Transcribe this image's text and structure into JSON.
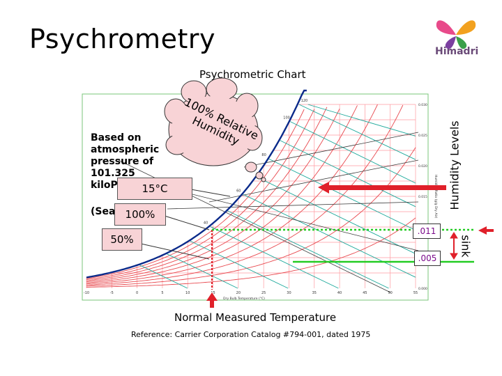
{
  "slide": {
    "title": "Psychrometry",
    "subtitle": "Psychrometric Chart",
    "logo_text": "Himadri"
  },
  "annotations": {
    "based_on": "Based on atmospheric pressure of 101.325 kiloPa",
    "sea": "(Sea",
    "cloud": "100% Relative Humidity",
    "callout_15c": "15°C",
    "callout_100": "100%",
    "callout_50": "50%",
    "humidity_levels": "Humidity Levels",
    "sink": "sink",
    "humidity_011": ".011",
    "humidity_005": ".005",
    "measured_temperature": "Normal Measured Temperature",
    "reference": "Reference: Carrier Corporation Catalog #794-001, dated 1975"
  },
  "colors": {
    "saturation_curve": "#0a2a8a",
    "rh_curves": "#e8484e",
    "enthalpy_lines": "#1aa89a",
    "guide_lines": "#3a3a3a",
    "dotted_011": "#22cc22",
    "solid_005": "#22cc22",
    "arrows": "#e0202a",
    "callout_fill": "#f8d3d6",
    "cloud_fill": "#f8d3d6",
    "humidity_text": "#7a0a8a"
  },
  "chart_data": {
    "type": "psychrometric",
    "x_axis_label": "Dry Bulb Temperature (°C)",
    "x_ticks": [
      "-10",
      "-5",
      "0",
      "5",
      "10",
      "15",
      "20",
      "25",
      "30",
      "35",
      "40",
      "45",
      "50",
      "55"
    ],
    "y_axis_label": "Humidity Ratio (g/g Dry Air)",
    "y_ticks": [
      "0.030",
      "0.025",
      "0.020",
      "0.015",
      "0.010",
      "0.005",
      "0.000"
    ],
    "enthalpy_ticks": [
      "120",
      "100",
      "80",
      "60",
      "40"
    ],
    "marked_dry_bulb_c": 15,
    "marked_humidity_ratios": [
      0.011,
      0.005
    ]
  }
}
